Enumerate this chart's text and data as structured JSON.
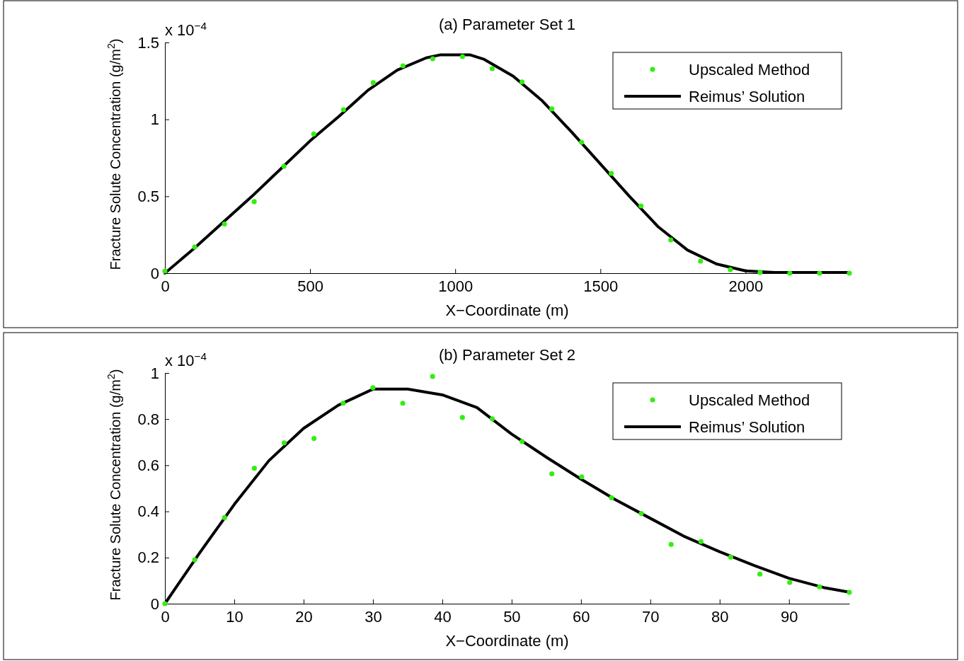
{
  "chart_data": [
    {
      "type": "scatter",
      "title": "(a) Parameter Set 1",
      "xlabel": "X−Coordinate (m)",
      "ylabel": "Fracture Solute Concentration (g/m$^{2}$)",
      "annotations": [
        "x 10$^{−4}$"
      ],
      "xlim": [
        0,
        2357.5
      ],
      "xticks": [
        0,
        500,
        1000,
        1500,
        2000
      ],
      "ylim": [
        0,
        1.5
      ],
      "yticks": [
        0,
        0.5,
        1,
        1.5
      ],
      "legend": "top right",
      "grid": false,
      "series": [
        {
          "name": "Upscaled Method",
          "marker": "circle",
          "color": "#33ee11",
          "x": [
            0,
            102.5,
            205,
            307.5,
            410,
            512.5,
            615,
            717.5,
            820,
            922.5,
            1025,
            1127.5,
            1230,
            1332.5,
            1435,
            1537.5,
            1640,
            1742.5,
            1845,
            1947.5,
            2050,
            2152.5,
            2255,
            2357.5
          ],
          "values": [
            0.014,
            0.17,
            0.32,
            0.465,
            0.695,
            0.905,
            1.063,
            1.238,
            1.348,
            1.394,
            1.408,
            1.33,
            1.243,
            1.068,
            0.851,
            0.649,
            0.437,
            0.216,
            0.078,
            0.023,
            0.005,
            0,
            0,
            0
          ]
        },
        {
          "name": "Reimus’ Solution",
          "type": "line",
          "marker": "none",
          "color": "#000000",
          "line_style": "solid",
          "x": [
            0,
            100,
            200,
            300,
            400,
            500,
            600,
            700,
            800,
            900,
            950,
            1050,
            1100,
            1200,
            1300,
            1400,
            1500,
            1600,
            1700,
            1800,
            1900,
            2000,
            2100,
            2357.5
          ],
          "values": [
            0,
            0.16,
            0.33,
            0.5,
            0.68,
            0.86,
            1.02,
            1.19,
            1.32,
            1.4,
            1.42,
            1.42,
            1.39,
            1.28,
            1.12,
            0.92,
            0.71,
            0.5,
            0.3,
            0.15,
            0.06,
            0.015,
            0.005,
            0.005
          ]
        }
      ]
    },
    {
      "type": "scatter",
      "title": "(b) Parameter Set 2",
      "xlabel": "X−Coordinate (m)",
      "ylabel": "Fracture Solute Concentration (g/m$^{2}$)",
      "annotations": [
        "x 10$^{−4}$"
      ],
      "xlim": [
        0,
        98.7
      ],
      "xticks": [
        0,
        10,
        20,
        30,
        40,
        50,
        60,
        70,
        80,
        90
      ],
      "ylim": [
        0,
        1
      ],
      "yticks": [
        0,
        0.2,
        0.4,
        0.6,
        0.8,
        1
      ],
      "legend": "top right",
      "grid": false,
      "series": [
        {
          "name": "Upscaled Method",
          "marker": "circle",
          "color": "#33ee11",
          "x": [
            0,
            4.3,
            8.6,
            12.9,
            17.2,
            21.5,
            25.7,
            30,
            34.3,
            38.6,
            42.9,
            47.2,
            51.5,
            55.8,
            60.1,
            64.4,
            68.7,
            73,
            77.3,
            81.6,
            85.8,
            90.1,
            94.4,
            98.7
          ],
          "values": [
            0,
            0.19,
            0.373,
            0.587,
            0.697,
            0.716,
            0.869,
            0.936,
            0.869,
            0.985,
            0.807,
            0.801,
            0.703,
            0.563,
            0.55,
            0.459,
            0.391,
            0.257,
            0.269,
            0.202,
            0.128,
            0.092,
            0.073,
            0.049
          ]
        },
        {
          "name": "Reimus’ Solution",
          "type": "line",
          "marker": "none",
          "color": "#000000",
          "line_style": "solid",
          "x": [
            0,
            5,
            10,
            15,
            20,
            25,
            30,
            35,
            40,
            45,
            50,
            55,
            60,
            65,
            70,
            75,
            80,
            85,
            90,
            95,
            98.7
          ],
          "values": [
            0,
            0.22,
            0.43,
            0.62,
            0.76,
            0.86,
            0.93,
            0.93,
            0.905,
            0.85,
            0.735,
            0.635,
            0.54,
            0.45,
            0.37,
            0.29,
            0.225,
            0.165,
            0.11,
            0.07,
            0.05
          ]
        }
      ]
    }
  ]
}
